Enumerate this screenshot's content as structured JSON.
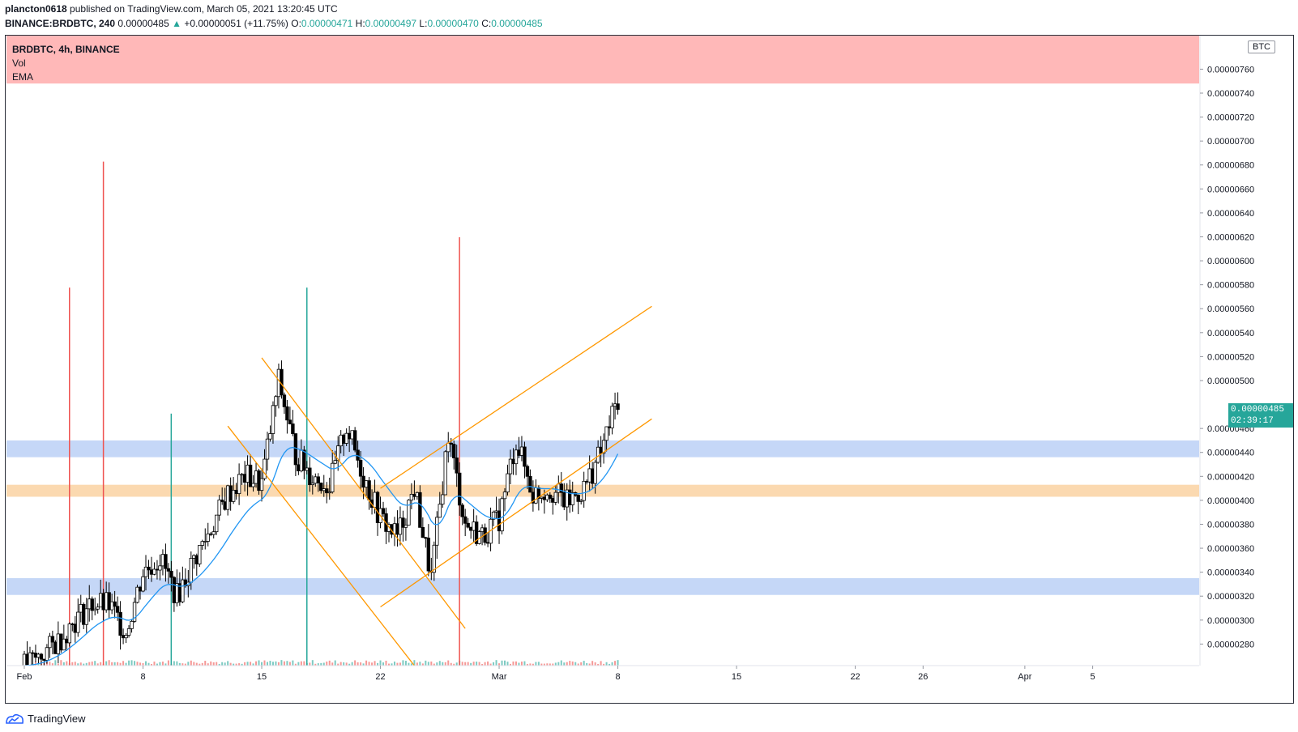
{
  "header": {
    "author": "plancton0618",
    "published_text": "published on TradingView.com, March 05, 2021 13:20:45 UTC",
    "symbol": "BINANCE:BRDBTC, 240",
    "last": "0.00000485",
    "change": "+0.00000051 (+11.75%)",
    "o_label": "O:",
    "o": "0.00000471",
    "h_label": "H:",
    "h": "0.00000497",
    "l_label": "L:",
    "l": "0.00000470",
    "c_label": "C:",
    "c": "0.00000485"
  },
  "legend": {
    "title": "BRDBTC, 4h, BINANCE",
    "vol": "Vol",
    "ema": "EMA"
  },
  "currency": "BTC",
  "last_price": {
    "value": "0.00000485",
    "countdown": "02:39:17"
  },
  "footer": {
    "brand": "TradingView"
  },
  "colors": {
    "up": "#26a69a",
    "down": "#ef5350",
    "candle_body": "#000000",
    "ema": "#2196f3",
    "trendline": "#ff9800",
    "support_zone": "#c5d7f7",
    "orange_zone": "#fbd9b0",
    "resistance_zone": "#ffb8b8"
  },
  "chart_data": {
    "type": "candlestick",
    "symbol": "BRDBTC",
    "interval": "4h",
    "exchange": "BINANCE",
    "y_unit": "BTC",
    "ylim": [
      2.62e-06,
      7.88e-06
    ],
    "y_ticks": [
      "0.00000760",
      "0.00000740",
      "0.00000720",
      "0.00000700",
      "0.00000680",
      "0.00000660",
      "0.00000640",
      "0.00000620",
      "0.00000600",
      "0.00000580",
      "0.00000560",
      "0.00000540",
      "0.00000520",
      "0.00000500",
      "0.00000460",
      "0.00000440",
      "0.00000420",
      "0.00000400",
      "0.00000380",
      "0.00000360",
      "0.00000340",
      "0.00000320",
      "0.00000300",
      "0.00000280"
    ],
    "x_ticks": [
      {
        "label": "Feb",
        "date": "2021-02-01"
      },
      {
        "label": "8",
        "date": "2021-02-08"
      },
      {
        "label": "15",
        "date": "2021-02-15"
      },
      {
        "label": "22",
        "date": "2021-02-22"
      },
      {
        "label": "Mar",
        "date": "2021-03-01"
      },
      {
        "label": "8",
        "date": "2021-03-08"
      },
      {
        "label": "15",
        "date": "2021-03-15"
      },
      {
        "label": "22",
        "date": "2021-03-22"
      },
      {
        "label": "26",
        "date": "2021-03-26"
      },
      {
        "label": "Apr",
        "date": "2021-04-01"
      },
      {
        "label": "5",
        "date": "2021-04-05"
      }
    ],
    "close_path": [
      {
        "date": "2021-02-01",
        "close": 2.62e-06
      },
      {
        "date": "2021-02-02",
        "close": 2.7e-06
      },
      {
        "date": "2021-02-03",
        "close": 2.83e-06
      },
      {
        "date": "2021-02-04",
        "close": 3e-06
      },
      {
        "date": "2021-02-05",
        "close": 3.14e-06
      },
      {
        "date": "2021-02-06",
        "close": 3.12e-06
      },
      {
        "date": "2021-02-07",
        "close": 2.9e-06
      },
      {
        "date": "2021-02-08",
        "close": 3.4e-06
      },
      {
        "date": "2021-02-09",
        "close": 3.52e-06
      },
      {
        "date": "2021-02-10",
        "close": 3.2e-06
      },
      {
        "date": "2021-02-11",
        "close": 3.5e-06
      },
      {
        "date": "2021-02-12",
        "close": 3.76e-06
      },
      {
        "date": "2021-02-13",
        "close": 4.05e-06
      },
      {
        "date": "2021-02-14",
        "close": 4.2e-06
      },
      {
        "date": "2021-02-15",
        "close": 4.15e-06
      },
      {
        "date": "2021-02-16",
        "close": 5e-06
      },
      {
        "date": "2021-02-17",
        "close": 4.38e-06
      },
      {
        "date": "2021-02-18",
        "close": 4.2e-06
      },
      {
        "date": "2021-02-19",
        "close": 4.12e-06
      },
      {
        "date": "2021-02-20",
        "close": 4.62e-06
      },
      {
        "date": "2021-02-21",
        "close": 4.2e-06
      },
      {
        "date": "2021-02-22",
        "close": 3.85e-06
      },
      {
        "date": "2021-02-23",
        "close": 3.7e-06
      },
      {
        "date": "2021-02-24",
        "close": 4.1e-06
      },
      {
        "date": "2021-02-25",
        "close": 3.35e-06
      },
      {
        "date": "2021-02-26",
        "close": 4.55e-06
      },
      {
        "date": "2021-02-27",
        "close": 3.8e-06
      },
      {
        "date": "2021-02-28",
        "close": 3.7e-06
      },
      {
        "date": "2021-03-01",
        "close": 3.85e-06
      },
      {
        "date": "2021-03-02",
        "close": 4.5e-06
      },
      {
        "date": "2021-03-03",
        "close": 4.05e-06
      },
      {
        "date": "2021-03-04",
        "close": 4.1e-06
      },
      {
        "date": "2021-03-05",
        "close": 3.98e-06
      },
      {
        "date": "2021-03-06",
        "close": 4.1e-06
      },
      {
        "date": "2021-03-07",
        "close": 4.4e-06
      },
      {
        "date": "2021-03-08",
        "close": 4.85e-06
      }
    ],
    "volume_spikes": [
      {
        "date": "2021-02-01",
        "kind": "down",
        "rel": 0.6
      },
      {
        "date": "2021-02-03",
        "kind": "down",
        "rel": 0.8
      },
      {
        "date": "2021-02-07",
        "kind": "up",
        "rel": 0.4
      },
      {
        "date": "2021-02-15",
        "kind": "up",
        "rel": 0.6
      },
      {
        "date": "2021-02-24",
        "kind": "down",
        "rel": 0.68
      }
    ],
    "zones": [
      {
        "kind": "resistance",
        "from": 7.48e-06,
        "to": 7.95e-06
      },
      {
        "kind": "support",
        "from": 4.36e-06,
        "to": 4.5e-06
      },
      {
        "kind": "orange",
        "from": 4.03e-06,
        "to": 4.13e-06
      },
      {
        "kind": "support",
        "from": 3.21e-06,
        "to": 3.35e-06
      }
    ],
    "trendlines": [
      {
        "name": "falling-channel-upper",
        "from": {
          "date": "2021-02-15",
          "price": 5.19e-06
        },
        "to": {
          "date": "2021-02-27",
          "price": 2.93e-06
        }
      },
      {
        "name": "falling-channel-lower",
        "from": {
          "date": "2021-02-13",
          "price": 4.62e-06
        },
        "to": {
          "date": "2021-02-24",
          "price": 2.62e-06
        }
      },
      {
        "name": "rising-channel-upper",
        "from": {
          "date": "2021-02-22",
          "price": 4.1e-06
        },
        "to": {
          "date": "2021-03-10",
          "price": 5.62e-06
        }
      },
      {
        "name": "rising-channel-lower",
        "from": {
          "date": "2021-02-22",
          "price": 3.11e-06
        },
        "to": {
          "date": "2021-03-10",
          "price": 4.68e-06
        }
      }
    ]
  }
}
